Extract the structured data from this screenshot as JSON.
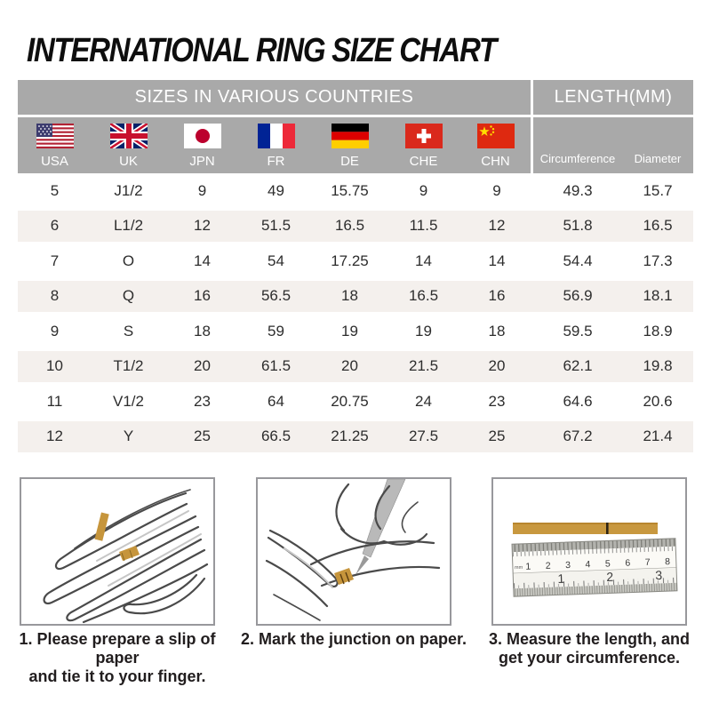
{
  "title": "INTERNATIONAL RING SIZE CHART",
  "chart_data": {
    "type": "table",
    "title": "INTERNATIONAL RING SIZE CHART",
    "group_headers": {
      "sizes": "SIZES IN VARIOUS COUNTRIES",
      "length": "LENGTH(MM)"
    },
    "columns": [
      "USA",
      "UK",
      "JPN",
      "FR",
      "DE",
      "CHE",
      "CHN",
      "Circumference",
      "Diameter"
    ],
    "rows": [
      [
        "5",
        "J1/2",
        "9",
        "49",
        "15.75",
        "9",
        "9",
        "49.3",
        "15.7"
      ],
      [
        "6",
        "L1/2",
        "12",
        "51.5",
        "16.5",
        "11.5",
        "12",
        "51.8",
        "16.5"
      ],
      [
        "7",
        "O",
        "14",
        "54",
        "17.25",
        "14",
        "14",
        "54.4",
        "17.3"
      ],
      [
        "8",
        "Q",
        "16",
        "56.5",
        "18",
        "16.5",
        "16",
        "56.9",
        "18.1"
      ],
      [
        "9",
        "S",
        "18",
        "59",
        "19",
        "19",
        "18",
        "59.5",
        "18.9"
      ],
      [
        "10",
        "T1/2",
        "20",
        "61.5",
        "20",
        "21.5",
        "20",
        "62.1",
        "19.8"
      ],
      [
        "11",
        "V1/2",
        "23",
        "64",
        "20.75",
        "24",
        "23",
        "64.6",
        "20.6"
      ],
      [
        "12",
        "Y",
        "25",
        "66.5",
        "21.25",
        "27.5",
        "25",
        "67.2",
        "21.4"
      ]
    ]
  },
  "steps": [
    {
      "line1": "1. Please prepare a slip of paper",
      "line2": "and tie it to your finger."
    },
    {
      "line1": "2. Mark the junction on paper.",
      "line2": ""
    },
    {
      "line1": "3. Measure the length, and",
      "line2": "get your circumference."
    }
  ],
  "illustrations": {
    "ruler": {
      "unit_label": "mm",
      "top_scale": [
        "1",
        "2",
        "3",
        "4",
        "5",
        "6",
        "7",
        "8"
      ],
      "bottom_scale": [
        "1",
        "2",
        "3"
      ]
    }
  },
  "colors": {
    "header_bg": "#a9a9a9",
    "header_text": "#ffffff",
    "row_alt_bg": "#f4f0ed",
    "body_text": "#2d2d2d",
    "paper_strip": "#c8983f",
    "box_border": "#98989c",
    "caption_text": "#211d1e"
  }
}
